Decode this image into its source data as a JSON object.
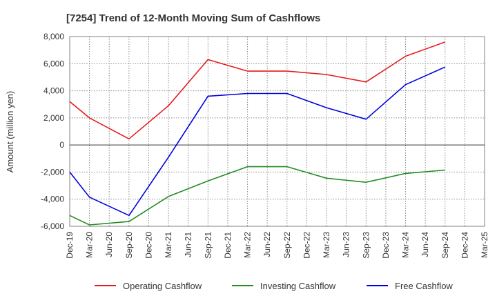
{
  "chart_data": {
    "type": "line",
    "title": "[7254]  Trend of 12-Month Moving Sum of Cashflows",
    "xlabel": "",
    "ylabel": "Amount (million yen)",
    "categories": [
      "Dec-19",
      "Mar-20",
      "Jun-20",
      "Sep-20",
      "Dec-20",
      "Mar-21",
      "Jun-21",
      "Sep-21",
      "Dec-21",
      "Mar-22",
      "Jun-22",
      "Sep-22",
      "Dec-22",
      "Mar-23",
      "Jun-23",
      "Sep-23",
      "Dec-23",
      "Mar-24",
      "Jun-24",
      "Sep-24",
      "Dec-24",
      "Mar-25"
    ],
    "ylim": [
      -6000,
      8000
    ],
    "yticks": [
      -6000,
      -4000,
      -2000,
      0,
      2000,
      4000,
      6000,
      8000
    ],
    "ytick_labels": [
      "-6,000",
      "-4,000",
      "-2,000",
      "0",
      "2,000",
      "4,000",
      "6,000",
      "8,000"
    ],
    "grid": true,
    "legend_position": "bottom",
    "series": [
      {
        "name": "Operating Cashflow",
        "color": "#e41a1c",
        "points": [
          [
            "Dec-19",
            3200
          ],
          [
            "Mar-20",
            2000
          ],
          [
            "Sep-20",
            450
          ],
          [
            "Mar-21",
            2900
          ],
          [
            "Sep-21",
            6300
          ],
          [
            "Mar-22",
            5450
          ],
          [
            "Sep-22",
            5450
          ],
          [
            "Mar-23",
            5200
          ],
          [
            "Sep-23",
            4650
          ],
          [
            "Mar-24",
            6550
          ],
          [
            "Sep-24",
            7600
          ]
        ]
      },
      {
        "name": "Investing Cashflow",
        "color": "#228b22",
        "points": [
          [
            "Dec-19",
            -5200
          ],
          [
            "Mar-20",
            -5900
          ],
          [
            "Sep-20",
            -5650
          ],
          [
            "Mar-21",
            -3800
          ],
          [
            "Sep-21",
            -2650
          ],
          [
            "Mar-22",
            -1600
          ],
          [
            "Sep-22",
            -1600
          ],
          [
            "Mar-23",
            -2450
          ],
          [
            "Sep-23",
            -2750
          ],
          [
            "Mar-24",
            -2100
          ],
          [
            "Sep-24",
            -1850
          ]
        ]
      },
      {
        "name": "Free Cashflow",
        "color": "#0000dd",
        "points": [
          [
            "Dec-19",
            -2000
          ],
          [
            "Mar-20",
            -3850
          ],
          [
            "Sep-20",
            -5200
          ],
          [
            "Mar-21",
            -900
          ],
          [
            "Sep-21",
            3600
          ],
          [
            "Mar-22",
            3800
          ],
          [
            "Sep-22",
            3800
          ],
          [
            "Mar-23",
            2750
          ],
          [
            "Sep-23",
            1900
          ],
          [
            "Mar-24",
            4450
          ],
          [
            "Sep-24",
            5750
          ]
        ]
      }
    ]
  }
}
